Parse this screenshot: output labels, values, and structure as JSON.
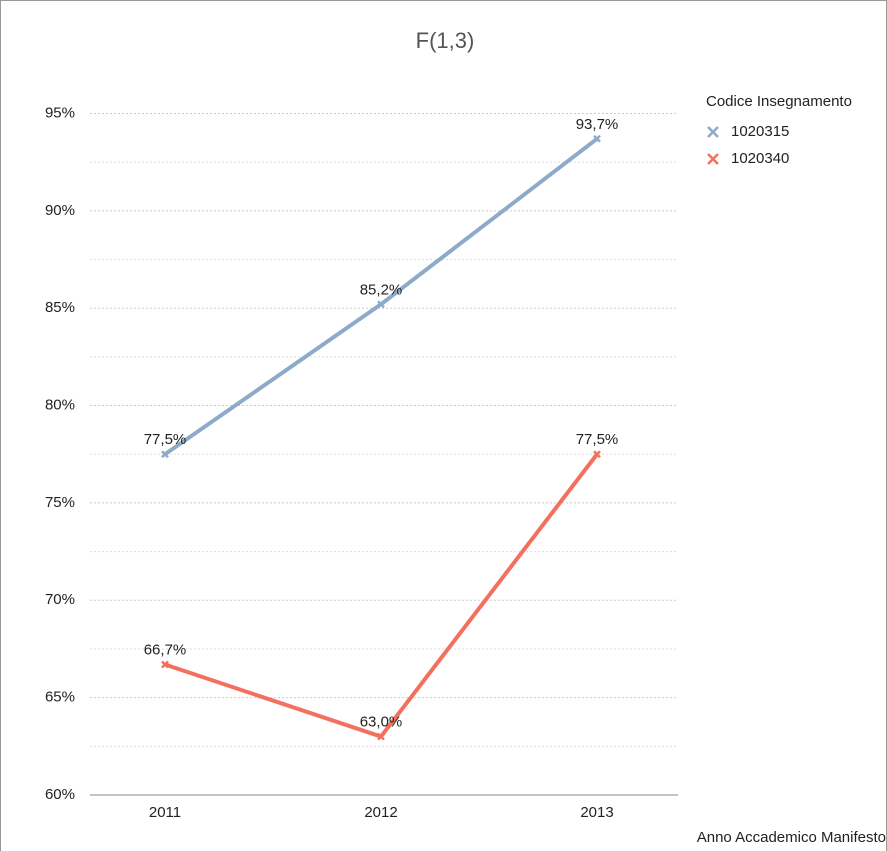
{
  "chart_data": {
    "type": "line",
    "title": "F(1,3)",
    "x_label": "Anno Accademico Manifesto",
    "legend_title": "Codice Insegnamento",
    "legend": "top-right",
    "categories": [
      "2011",
      "2012",
      "2013"
    ],
    "series": [
      {
        "name": "1020315",
        "color": "#8eaacb",
        "values": [
          77.5,
          85.2,
          93.7
        ],
        "value_labels": [
          "77,5%",
          "85,2%",
          "93,7%"
        ]
      },
      {
        "name": "1020340",
        "color": "#f4705e",
        "values": [
          66.7,
          63.0,
          77.5
        ],
        "value_labels": [
          "66,7%",
          "63,0%",
          "77,5%"
        ]
      }
    ],
    "ylim": [
      60,
      96
    ],
    "yticks": [
      {
        "value": 60,
        "label": "60%"
      },
      {
        "value": 65,
        "label": "65%"
      },
      {
        "value": 70,
        "label": "70%"
      },
      {
        "value": 75,
        "label": "75%"
      },
      {
        "value": 80,
        "label": "80%"
      },
      {
        "value": 85,
        "label": "85%"
      },
      {
        "value": 90,
        "label": "90%"
      },
      {
        "value": 95,
        "label": "95%"
      }
    ],
    "grid": true,
    "minor_grid": true
  }
}
